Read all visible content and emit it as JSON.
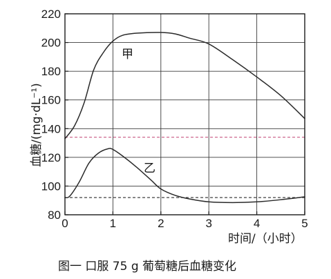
{
  "chart_data": {
    "type": "line",
    "title": "图一    口服 75 g 葡萄糖后血糖变化",
    "xlabel": "时间/（小时）",
    "ylabel": "血糖/(mg·dL⁻¹)",
    "xlim": [
      0,
      5
    ],
    "ylim": [
      80,
      220
    ],
    "x_ticks": [
      "0",
      "1",
      "2",
      "3",
      "4",
      "5"
    ],
    "y_ticks": [
      "80",
      "100",
      "120",
      "140",
      "160",
      "180",
      "200",
      "220"
    ],
    "grid": true,
    "series": [
      {
        "name": "甲",
        "color": "#2a2a2a",
        "x": [
          0,
          0.2,
          0.4,
          0.6,
          0.8,
          1.0,
          1.2,
          1.5,
          2.0,
          2.3,
          2.6,
          3.0,
          3.5,
          4.0,
          4.5,
          5.0
        ],
        "y": [
          133,
          142,
          158,
          181,
          193,
          201,
          205,
          206.5,
          207,
          206,
          203,
          199,
          188,
          176,
          163,
          147
        ]
      },
      {
        "name": "乙",
        "color": "#2a2a2a",
        "x": [
          0,
          0.1,
          0.3,
          0.5,
          0.7,
          0.9,
          1.0,
          1.2,
          1.5,
          1.8,
          2.0,
          2.3,
          2.6,
          3.0,
          3.5,
          4.0,
          4.5,
          5.0
        ],
        "y": [
          92,
          93,
          103,
          116,
          123,
          126,
          125.5,
          121,
          113,
          104,
          98,
          93.5,
          91,
          89,
          88.5,
          89,
          90.5,
          92.5
        ]
      }
    ],
    "reference_lines": [
      {
        "y": 134,
        "style": "dashed",
        "color": "#c04070"
      },
      {
        "y": 92,
        "style": "dashed",
        "color": "#2a2a2a"
      }
    ]
  }
}
